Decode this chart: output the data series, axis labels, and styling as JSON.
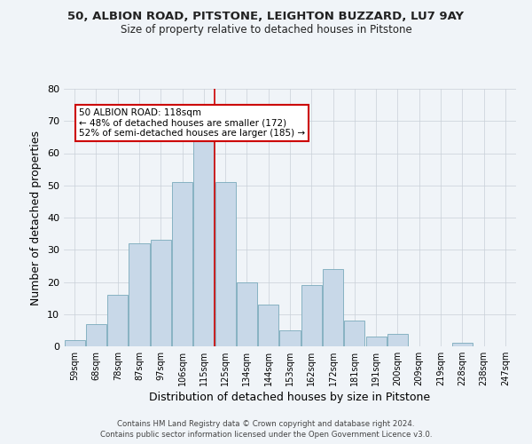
{
  "title1": "50, ALBION ROAD, PITSTONE, LEIGHTON BUZZARD, LU7 9AY",
  "title2": "Size of property relative to detached houses in Pitstone",
  "xlabel": "Distribution of detached houses by size in Pitstone",
  "ylabel": "Number of detached properties",
  "footer1": "Contains HM Land Registry data © Crown copyright and database right 2024.",
  "footer2": "Contains public sector information licensed under the Open Government Licence v3.0.",
  "categories": [
    "59sqm",
    "68sqm",
    "78sqm",
    "87sqm",
    "97sqm",
    "106sqm",
    "115sqm",
    "125sqm",
    "134sqm",
    "144sqm",
    "153sqm",
    "162sqm",
    "172sqm",
    "181sqm",
    "191sqm",
    "200sqm",
    "209sqm",
    "219sqm",
    "228sqm",
    "238sqm",
    "247sqm"
  ],
  "values": [
    2,
    7,
    16,
    32,
    33,
    51,
    65,
    51,
    20,
    13,
    5,
    19,
    24,
    8,
    3,
    4,
    0,
    0,
    1,
    0,
    0
  ],
  "bar_color": "#c8d8e8",
  "bar_edge_color": "#7aaabb",
  "vline_color": "#cc0000",
  "vline_x_index": 6.5,
  "annotation_title": "50 ALBION ROAD: 118sqm",
  "annotation_line1": "← 48% of detached houses are smaller (172)",
  "annotation_line2": "52% of semi-detached houses are larger (185) →",
  "annotation_box_color": "#ffffff",
  "annotation_box_edge": "#cc0000",
  "ylim": [
    0,
    80
  ],
  "yticks": [
    0,
    10,
    20,
    30,
    40,
    50,
    60,
    70,
    80
  ],
  "background_color": "#f0f4f8",
  "grid_color": "#c8d0d8"
}
